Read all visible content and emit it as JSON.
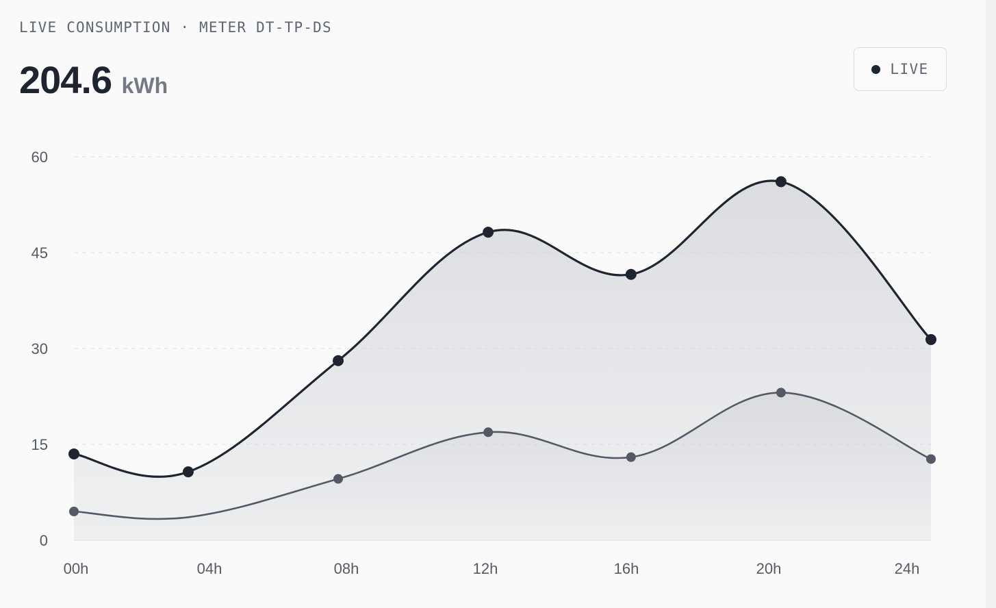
{
  "header": {
    "kicker": "LIVE CONSUMPTION · METER DT-TP-DS",
    "total_value": "204.6",
    "total_unit": "kWh"
  },
  "badge": {
    "label": "LIVE",
    "icon": "live-dot-icon"
  },
  "colors": {
    "primary_line": "#1f2530",
    "secondary_line": "#535a66",
    "area_fill": "#cfd1d6",
    "grid": "#dfe1e5",
    "background": "#fafafb"
  },
  "chart_data": {
    "type": "area",
    "x": [
      0,
      3.2,
      7.4,
      11.6,
      15.6,
      19.8,
      24
    ],
    "xticks": [
      0,
      4,
      8,
      12,
      16,
      20,
      24
    ],
    "xtick_labels": [
      "00h",
      "04h",
      "08h",
      "12h",
      "16h",
      "20h",
      "24h"
    ],
    "yticks": [
      0,
      15,
      30,
      45,
      60
    ],
    "ytick_labels": [
      "0",
      "15",
      "30",
      "45",
      "60"
    ],
    "xlim": [
      0,
      24
    ],
    "ylim": [
      0,
      60
    ],
    "grid": true,
    "legend": "none",
    "series": [
      {
        "values": [
          13.5,
          10.7,
          28.1,
          48.2,
          41.6,
          56.1,
          31.4
        ]
      },
      {
        "values": [
          4.5,
          null,
          9.6,
          16.9,
          13.0,
          23.1,
          12.7
        ]
      }
    ],
    "series_line_only_start": [
      4.5,
      3.6
    ]
  }
}
